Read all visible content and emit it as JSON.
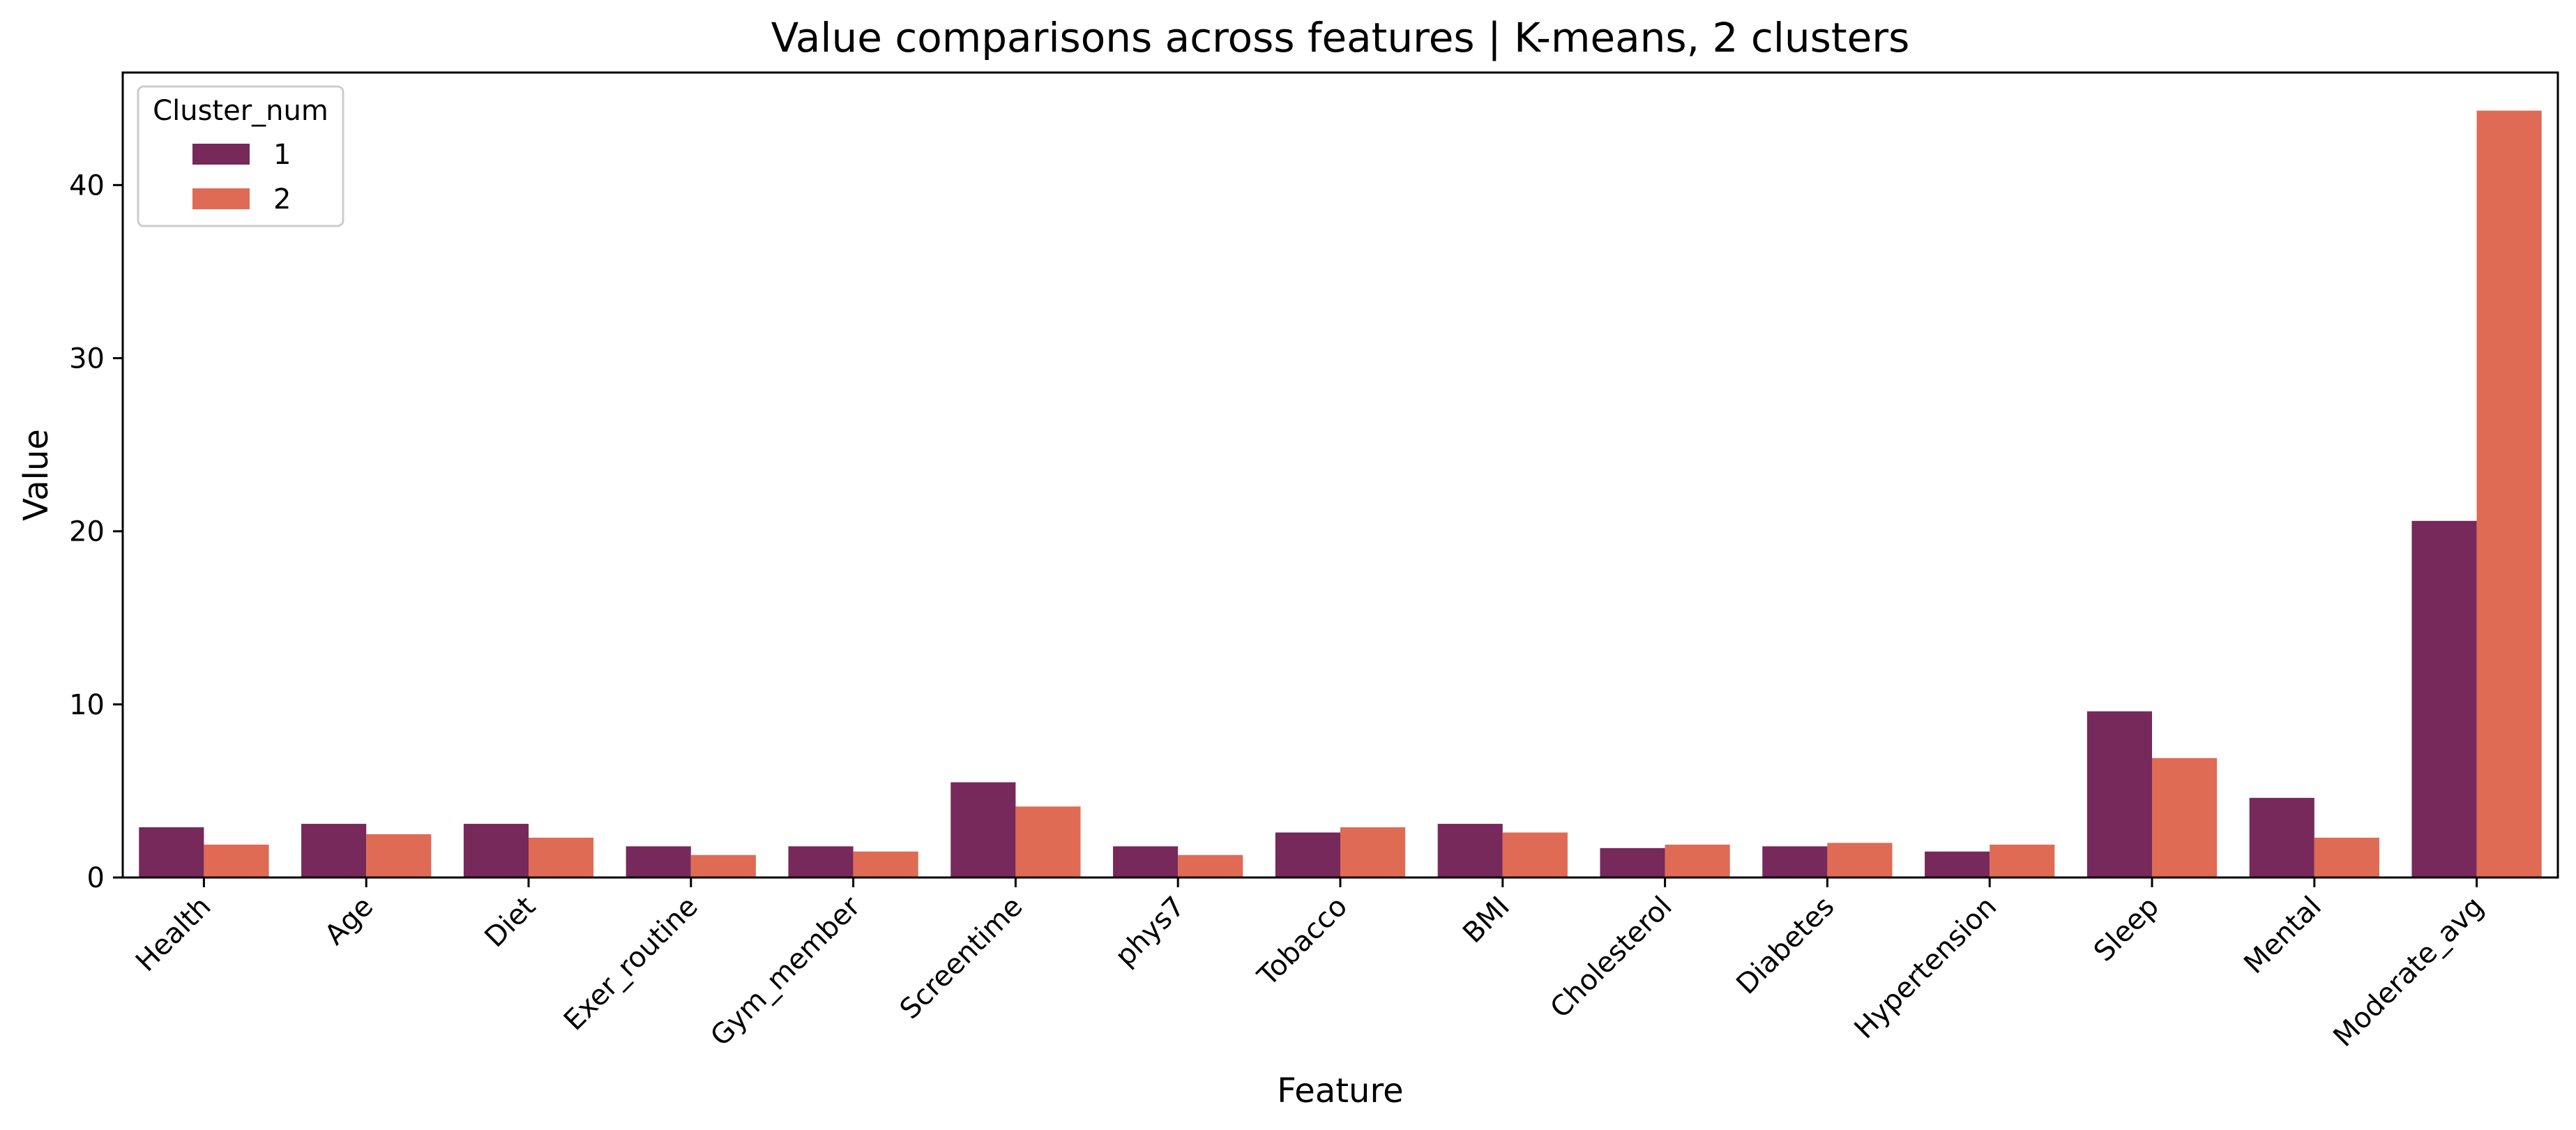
{
  "chart_data": {
    "type": "bar",
    "title": "Value comparisons across features | K-means, 2 clusters",
    "xlabel": "Feature",
    "ylabel": "Value",
    "categories": [
      "Health",
      "Age",
      "Diet",
      "Exer_routine",
      "Gym_member",
      "Screentime",
      "phys7",
      "Tobacco",
      "BMI",
      "Cholesterol",
      "Diabetes",
      "Hypertension",
      "Sleep",
      "Mental",
      "Moderate_avg"
    ],
    "series": [
      {
        "name": "1",
        "color": "#76295a",
        "values": [
          2.9,
          3.1,
          3.1,
          1.8,
          1.8,
          5.5,
          1.8,
          2.6,
          3.1,
          1.7,
          1.8,
          1.5,
          9.6,
          4.6,
          20.6
        ]
      },
      {
        "name": "2",
        "color": "#df6b55",
        "values": [
          1.9,
          2.5,
          2.3,
          1.3,
          1.5,
          4.1,
          1.3,
          2.9,
          2.6,
          1.9,
          2.0,
          1.9,
          6.9,
          2.3,
          44.3
        ]
      }
    ],
    "ylim": [
      0,
      46.5
    ],
    "yticks": [
      0,
      10,
      20,
      30,
      40
    ],
    "grid": false,
    "legend": {
      "title": "Cluster_num",
      "placement": "top-left"
    }
  }
}
